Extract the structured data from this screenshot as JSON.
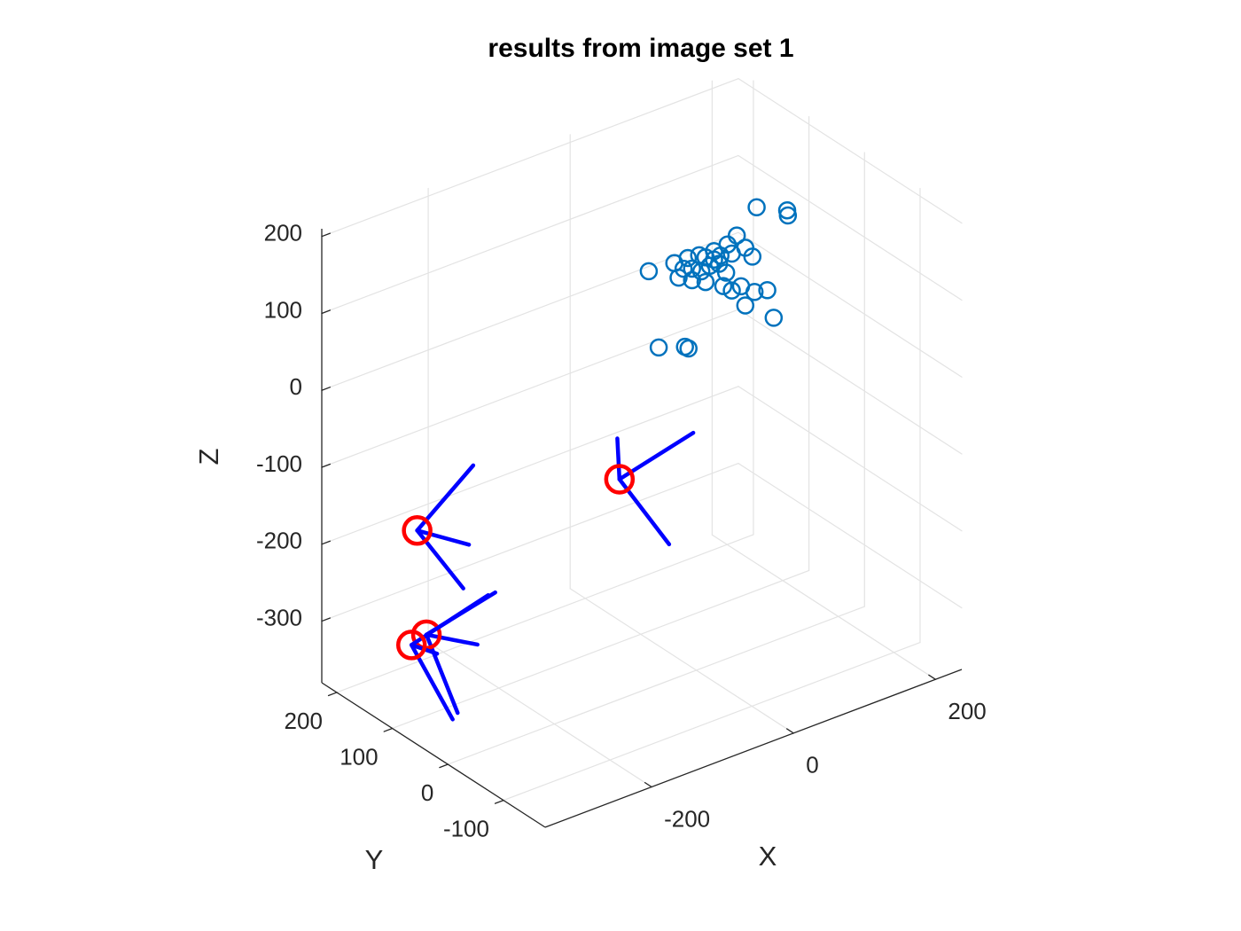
{
  "chart_data": {
    "type": "scatter3d",
    "title": "results from image set 1",
    "xlabel": "X",
    "ylabel": "Y",
    "zlabel": "Z",
    "xlim": [
      -350,
      237
    ],
    "ylim": [
      -175,
      227
    ],
    "zlim": [
      -380,
      210
    ],
    "xticks": [
      -200,
      0,
      200
    ],
    "yticks": [
      -100,
      0,
      100,
      200
    ],
    "zticks": [
      -300,
      -200,
      -100,
      0,
      100,
      200
    ],
    "grid": true,
    "points": {
      "color": "#0072bd",
      "x": [
        85,
        128,
        129,
        57,
        69,
        79,
        44,
        34,
        25,
        13,
        4,
        -12,
        -31,
        -67,
        -25,
        -6,
        7,
        19,
        32,
        42,
        50,
        63,
        82,
        100,
        69,
        109,
        -53,
        -16,
        -11,
        -6,
        -18,
        13,
        38,
        25,
        50
      ],
      "y": [
        0,
        0,
        0,
        0,
        0,
        0,
        0,
        0,
        0,
        0,
        0,
        0,
        0,
        0,
        0,
        0,
        0,
        0,
        0,
        0,
        0,
        0,
        0,
        0,
        0,
        0,
        0,
        0,
        0,
        0,
        0,
        0,
        0,
        0,
        0
      ],
      "z": [
        192,
        173,
        166,
        165,
        145,
        130,
        158,
        147,
        145,
        152,
        158,
        160,
        160,
        162,
        139,
        129,
        136,
        139,
        137,
        122,
        96,
        97,
        83,
        79,
        70,
        40,
        58,
        46,
        42,
        144,
        148,
        120,
        106,
        156,
        144
      ]
    },
    "cameras": {
      "color": "#ff0000",
      "axis_color": "#0000ff",
      "positions": [
        [
          -315,
          100,
          -135
        ],
        [
          -30,
          100,
          -168
        ],
        [
          -302,
          100,
          -275
        ],
        [
          -323,
          100,
          -281
        ]
      ],
      "axes": [
        [
          [
            -236,
            100,
            -78
          ],
          [
            -242,
            100,
            -179
          ],
          [
            -250,
            100,
            -233
          ]
        ],
        [
          [
            74,
            100,
            -144
          ],
          [
            -33,
            100,
            -114
          ],
          [
            40,
            100,
            -277
          ]
        ],
        [
          [
            -205,
            100,
            -254
          ],
          [
            -230,
            100,
            -313
          ],
          [
            -258,
            100,
            -392
          ]
        ],
        [
          [
            -215,
            100,
            -254
          ],
          [
            -265,
            100,
            -398
          ],
          [
            -287,
            100,
            -305
          ]
        ]
      ]
    }
  }
}
